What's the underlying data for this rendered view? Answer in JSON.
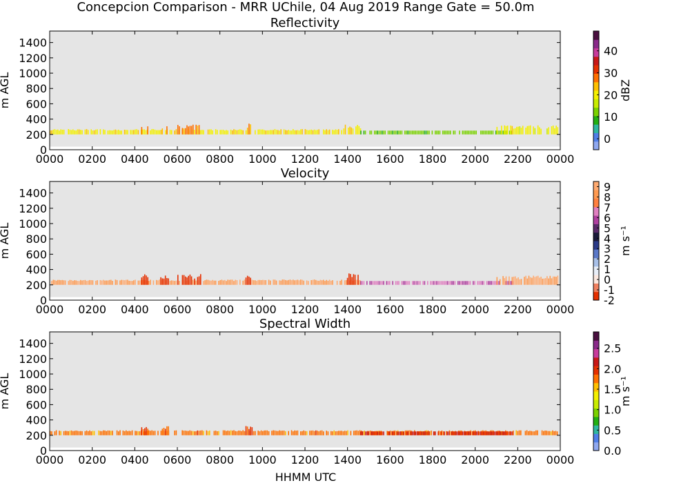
{
  "figure": {
    "suptitle": "Concepcion Comparison - MRR UChile, 04 Aug 2019 Range Gate = 50.0m",
    "xlabel": "HHMM UTC"
  },
  "chart_data": [
    {
      "type": "heatmap",
      "title": "Reflectivity",
      "ylabel": "m AGL",
      "colorbar_label": "dBZ",
      "x_ticks": [
        "0000",
        "0200",
        "0400",
        "0600",
        "0800",
        "1000",
        "1200",
        "1400",
        "1600",
        "1800",
        "2000",
        "2200",
        "0000"
      ],
      "x_range_hours": [
        0,
        24
      ],
      "y_ticks": [
        0,
        200,
        400,
        600,
        800,
        1000,
        1200,
        1400
      ],
      "ylim": [
        0,
        1550
      ],
      "cbar_range": [
        -5,
        49
      ],
      "cbar_ticks": [
        0,
        10,
        20,
        30,
        40
      ],
      "colormap": [
        "#8fa8f0",
        "#4f7ee8",
        "#2fb7a0",
        "#22b012",
        "#7bd200",
        "#c8ec00",
        "#f4f000",
        "#ffc000",
        "#ff7000",
        "#e53000",
        "#c81818",
        "#c83c9c",
        "#8a2a8a",
        "#4a1040"
      ],
      "signal_band_m": [
        200,
        250
      ],
      "segments": [
        {
          "start_hour": 0.0,
          "end_hour": 13.8,
          "value": 21,
          "top_m": 300
        },
        {
          "start_hour": 4.3,
          "end_hour": 4.6,
          "value": 28,
          "top_m": 360
        },
        {
          "start_hour": 5.2,
          "end_hour": 5.6,
          "value": 27,
          "top_m": 340
        },
        {
          "start_hour": 6.0,
          "end_hour": 7.1,
          "value": 27,
          "top_m": 330
        },
        {
          "start_hour": 9.2,
          "end_hour": 9.5,
          "value": 25,
          "top_m": 360
        },
        {
          "start_hour": 13.8,
          "end_hour": 14.6,
          "value": 22,
          "top_m": 330
        },
        {
          "start_hour": 14.6,
          "end_hour": 21.8,
          "value": 12,
          "top_m": 250
        },
        {
          "start_hour": 21.0,
          "end_hour": 23.9,
          "value": 20,
          "top_m": 320
        }
      ]
    },
    {
      "type": "heatmap",
      "title": "Velocity",
      "ylabel": "m AGL",
      "colorbar_label": "m s⁻¹",
      "x_ticks": [
        "0000",
        "0200",
        "0400",
        "0600",
        "0800",
        "1000",
        "1200",
        "1400",
        "1600",
        "1800",
        "2000",
        "2200",
        "0000"
      ],
      "x_range_hours": [
        0,
        24
      ],
      "y_ticks": [
        0,
        200,
        400,
        600,
        800,
        1000,
        1200,
        1400
      ],
      "ylim": [
        0,
        1550
      ],
      "cbar_range": [
        -2,
        9.5
      ],
      "cbar_ticks": [
        -2,
        -1,
        0,
        1,
        2,
        3,
        4,
        5,
        6,
        7,
        8,
        9
      ],
      "colormap": [
        "#e53000",
        "#f08060",
        "#fce8e0",
        "#e8eef8",
        "#a8c0e8",
        "#5a78c8",
        "#2a3a88",
        "#1a1a3a",
        "#5a2a6a",
        "#b040a0",
        "#e080c0",
        "#ff8040",
        "#ff9a50",
        "#ffaa70"
      ],
      "signal_band_m": [
        200,
        250
      ],
      "segments": [
        {
          "start_hour": 0.0,
          "end_hour": 14.6,
          "value": 8.6,
          "top_m": 300
        },
        {
          "start_hour": 4.3,
          "end_hour": 4.6,
          "value": -1.8,
          "top_m": 360
        },
        {
          "start_hour": 5.2,
          "end_hour": 5.6,
          "value": -1.8,
          "top_m": 350
        },
        {
          "start_hour": 6.0,
          "end_hour": 7.1,
          "value": -1.8,
          "top_m": 340
        },
        {
          "start_hour": 9.2,
          "end_hour": 9.5,
          "value": -1.8,
          "top_m": 360
        },
        {
          "start_hour": 13.9,
          "end_hour": 14.5,
          "value": -1.8,
          "top_m": 360
        },
        {
          "start_hour": 14.6,
          "end_hour": 21.8,
          "value": 6.2,
          "top_m": 250
        },
        {
          "start_hour": 21.0,
          "end_hour": 23.9,
          "value": 8.6,
          "top_m": 320
        }
      ]
    },
    {
      "type": "heatmap",
      "title": "Spectral Width",
      "ylabel": "m AGL",
      "colorbar_label": "m s⁻¹",
      "x_ticks": [
        "0000",
        "0200",
        "0400",
        "0600",
        "0800",
        "1000",
        "1200",
        "1400",
        "1600",
        "1800",
        "2000",
        "2200",
        "0000"
      ],
      "x_range_hours": [
        0,
        24
      ],
      "y_ticks": [
        0,
        200,
        400,
        600,
        800,
        1000,
        1200,
        1400
      ],
      "ylim": [
        0,
        1550
      ],
      "cbar_range": [
        0,
        2.9
      ],
      "cbar_ticks": [
        0.0,
        0.5,
        1.0,
        1.5,
        2.0,
        2.5
      ],
      "colormap": [
        "#8fa8f0",
        "#4f7ee8",
        "#2fb7a0",
        "#22b012",
        "#7bd200",
        "#c8ec00",
        "#f4f000",
        "#ffc000",
        "#ff7000",
        "#e53000",
        "#c81818",
        "#c83c9c",
        "#8a2a8a",
        "#4a1040"
      ],
      "signal_band_m": [
        200,
        250
      ],
      "segments": [
        {
          "start_hour": 0.0,
          "end_hour": 23.9,
          "value": 1.75,
          "top_m": 290
        },
        {
          "start_hour": 4.3,
          "end_hour": 4.6,
          "value": 1.9,
          "top_m": 340
        },
        {
          "start_hour": 5.2,
          "end_hour": 5.6,
          "value": 1.8,
          "top_m": 320
        },
        {
          "start_hour": 9.2,
          "end_hour": 9.5,
          "value": 1.9,
          "top_m": 340
        },
        {
          "start_hour": 14.6,
          "end_hour": 21.8,
          "value": 2.1,
          "top_m": 250
        }
      ]
    }
  ]
}
